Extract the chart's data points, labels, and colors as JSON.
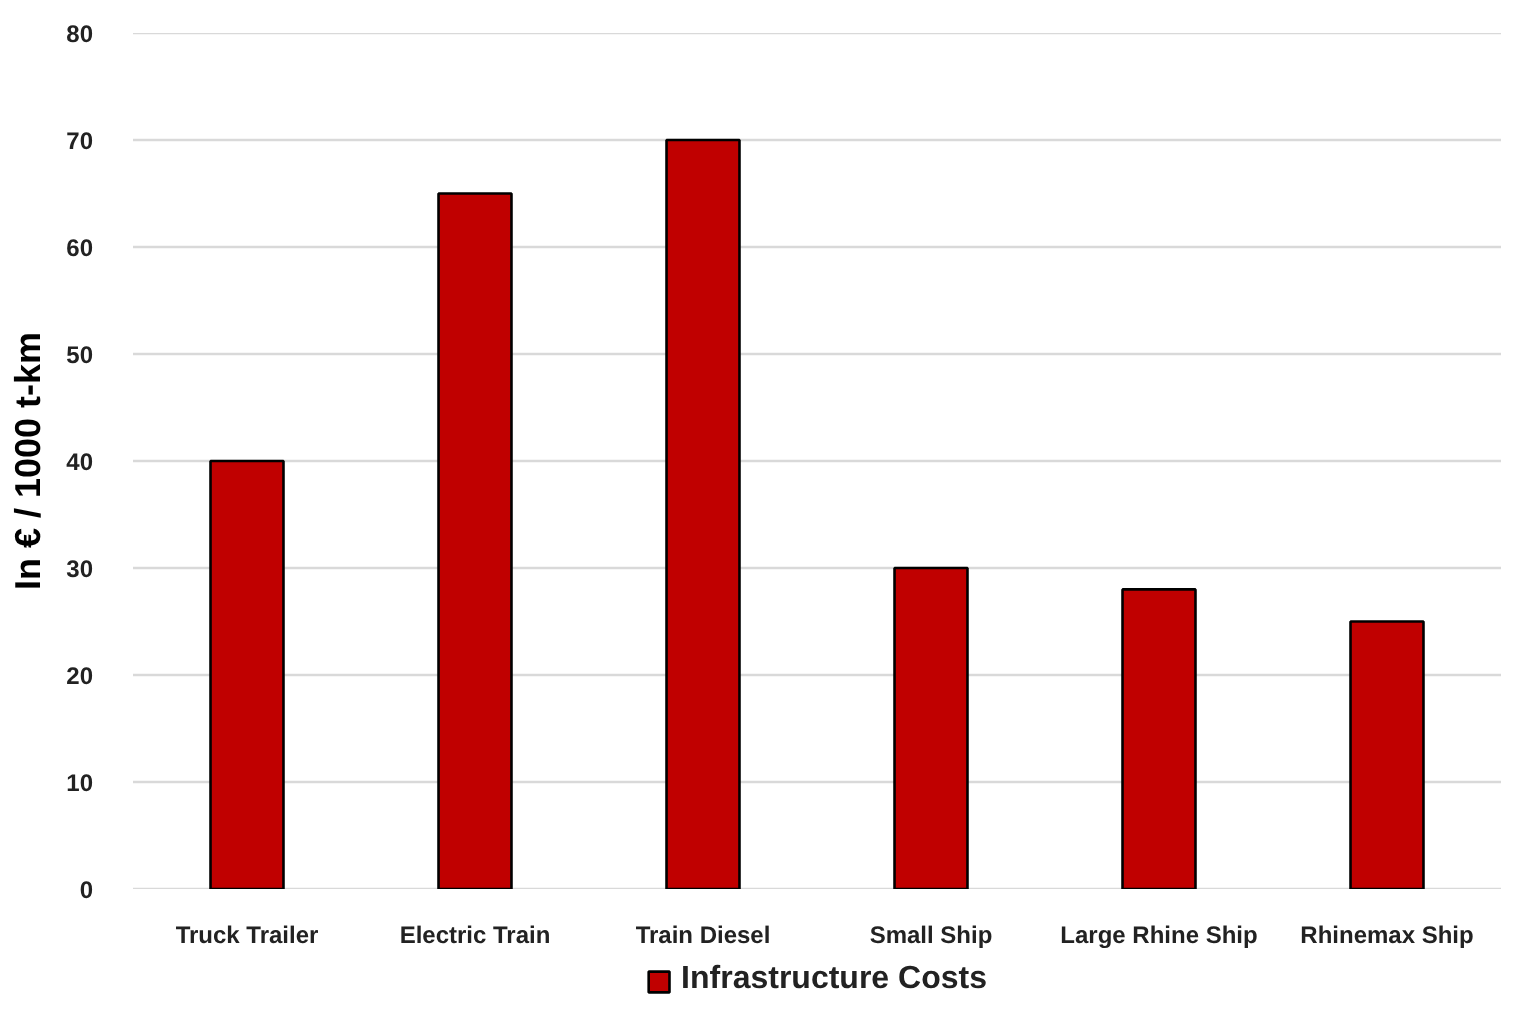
{
  "chart_data": {
    "type": "bar",
    "ylabel": "In € / 1000 t-km",
    "categories": [
      "Truck Trailer",
      "Electric Train",
      "Train Diesel",
      "Small Ship",
      "Large Rhine Ship",
      "Rhinemax Ship"
    ],
    "series": [
      {
        "name": "Infrastructure Costs",
        "color": "#c00000",
        "values": [
          40,
          65,
          70,
          30,
          28,
          25
        ]
      }
    ],
    "ylim": [
      0,
      80
    ],
    "yticks": [
      0,
      10,
      20,
      30,
      40,
      50,
      60,
      70,
      80
    ],
    "grid": "y",
    "legend": "bottom"
  }
}
